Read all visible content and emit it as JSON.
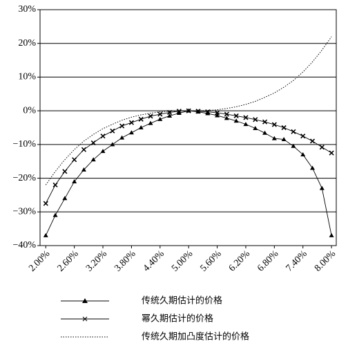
{
  "chart_data": {
    "type": "line",
    "x": [
      2.0,
      2.2,
      2.4,
      2.6,
      2.8,
      3.0,
      3.2,
      3.4,
      3.6,
      3.8,
      4.0,
      4.2,
      4.4,
      4.6,
      4.8,
      5.0,
      5.2,
      5.4,
      5.6,
      5.8,
      6.0,
      6.2,
      6.4,
      6.6,
      6.8,
      7.0,
      7.2,
      7.4,
      7.6,
      7.8,
      8.0
    ],
    "series": [
      {
        "name": "传统久期估计的价格",
        "color": "#000000",
        "marker": "triangle",
        "dash": "solid",
        "values": [
          -37,
          -31,
          -26,
          -21,
          -17.5,
          -14.5,
          -12,
          -10,
          -8,
          -6.5,
          -5,
          -3.7,
          -2.5,
          -1.5,
          -0.7,
          0,
          -0.3,
          -0.8,
          -1.4,
          -2.2,
          -3,
          -4,
          -5.2,
          -6.6,
          -8.2,
          -8.5,
          -10.5,
          -13,
          -17,
          -23,
          -37
        ]
      },
      {
        "name": "幂久期估计的价格",
        "color": "#000000",
        "marker": "x",
        "dash": "solid",
        "values": [
          -27.5,
          -22,
          -18,
          -14.5,
          -11.5,
          -9.5,
          -7.5,
          -6,
          -4.5,
          -3.5,
          -2.5,
          -1.6,
          -1,
          -0.5,
          -0.1,
          0,
          -0.1,
          -0.3,
          -0.6,
          -1,
          -1.5,
          -2,
          -2.6,
          -3.3,
          -4.1,
          -5,
          -6.2,
          -7.5,
          -9,
          -10.8,
          -12.5
        ]
      },
      {
        "name": "传统久期加凸度估计的价格",
        "color": "#000000",
        "marker": "none",
        "dash": "dotted",
        "values": [
          -22,
          -18,
          -14.5,
          -11.5,
          -9,
          -7,
          -5.3,
          -4,
          -2.8,
          -1.9,
          -1.2,
          -0.7,
          -0.3,
          -0.1,
          0,
          0,
          0,
          0.1,
          0.3,
          0.7,
          1.2,
          1.9,
          2.8,
          4,
          5.3,
          7,
          9,
          11.5,
          14.5,
          18,
          22
        ]
      }
    ],
    "xlim": [
      1.88,
      8.1
    ],
    "ylim": [
      -40,
      30
    ],
    "xticks": [
      {
        "value": 2.0,
        "label": "2.00%"
      },
      {
        "value": 2.6,
        "label": "2.60%"
      },
      {
        "value": 3.2,
        "label": "3.20%"
      },
      {
        "value": 3.8,
        "label": "3.80%"
      },
      {
        "value": 4.4,
        "label": "4.40%"
      },
      {
        "value": 5.0,
        "label": "5.00%"
      },
      {
        "value": 5.6,
        "label": "5.60%"
      },
      {
        "value": 6.2,
        "label": "6.20%"
      },
      {
        "value": 6.8,
        "label": "6.80%"
      },
      {
        "value": 7.4,
        "label": "7.40%"
      },
      {
        "value": 8.0,
        "label": "8.00%"
      }
    ],
    "yticks": [
      {
        "value": 30,
        "label": "30%"
      },
      {
        "value": 20,
        "label": "20%"
      },
      {
        "value": 10,
        "label": "10%"
      },
      {
        "value": 0,
        "label": "0%"
      },
      {
        "value": -10,
        "label": "−10%"
      },
      {
        "value": -20,
        "label": "−20%"
      },
      {
        "value": -30,
        "label": "−30%"
      },
      {
        "value": -40,
        "label": "−40%"
      }
    ],
    "grid": true
  }
}
